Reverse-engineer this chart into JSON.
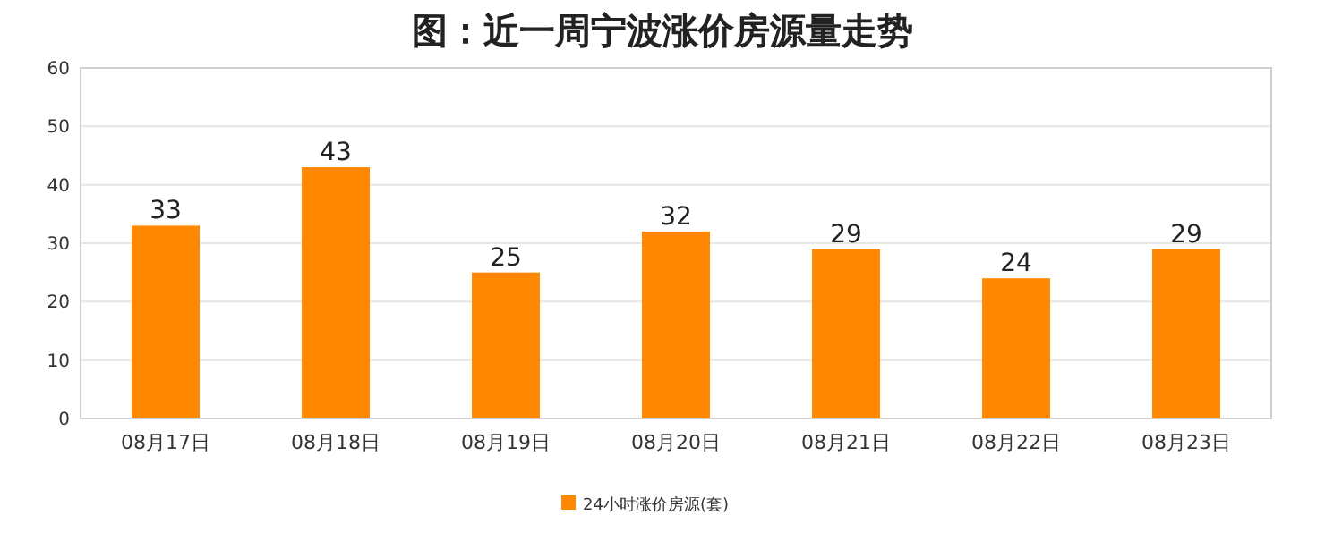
{
  "chart_data": {
    "type": "bar",
    "title": "图：近一周宁波涨价房源量走势",
    "categories": [
      "08月17日",
      "08月18日",
      "08月19日",
      "08月20日",
      "08月21日",
      "08月22日",
      "08月23日"
    ],
    "series": [
      {
        "name": "24小时涨价房源(套)",
        "color": "#ff8800",
        "values": [
          33,
          43,
          25,
          32,
          29,
          24,
          29
        ]
      }
    ],
    "ylim": [
      0,
      60
    ],
    "yticks": [
      0,
      10,
      20,
      30,
      40,
      50,
      60
    ],
    "grid": "y",
    "legend": "bottom",
    "data_labels": true
  }
}
